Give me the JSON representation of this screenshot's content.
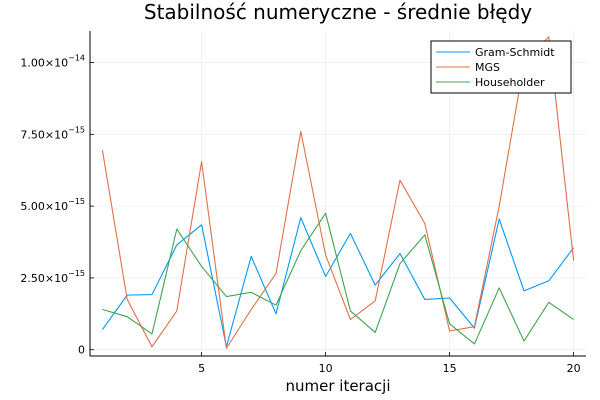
{
  "chart_data": {
    "type": "line",
    "title": "Stabilność numeryczne - średnie błędy",
    "xlabel": "numer iteracji",
    "ylabel": "",
    "xlim": [
      0.5,
      20.5
    ],
    "ylim": [
      -2.2e-16,
      1.11e-14
    ],
    "xticks": [
      5,
      10,
      15,
      20
    ],
    "yticks": [
      {
        "value": 0,
        "mantissa": "0",
        "exponent": ""
      },
      {
        "value": 2.5e-15,
        "mantissa": "2.50×10",
        "exponent": "−15"
      },
      {
        "value": 5e-15,
        "mantissa": "5.00×10",
        "exponent": "−15"
      },
      {
        "value": 7.5e-15,
        "mantissa": "7.50×10",
        "exponent": "−15"
      },
      {
        "value": 1e-14,
        "mantissa": "1.00×10",
        "exponent": "−14"
      }
    ],
    "grid": true,
    "legend_position": "top-right",
    "x": [
      1,
      2,
      3,
      4,
      5,
      6,
      7,
      8,
      9,
      10,
      11,
      12,
      13,
      14,
      15,
      16,
      17,
      18,
      19,
      20
    ],
    "series": [
      {
        "name": "Gram-Schmidt",
        "color": "#009AFA",
        "values": [
          7e-16,
          1.9e-15,
          1.92e-15,
          3.65e-15,
          4.35e-15,
          1e-16,
          3.25e-15,
          1.25e-15,
          4.6e-15,
          2.55e-15,
          4.05e-15,
          2.25e-15,
          3.35e-15,
          1.75e-15,
          1.8e-15,
          7.5e-16,
          4.55e-15,
          2.05e-15,
          2.4e-15,
          3.55e-15
        ]
      },
      {
        "name": "MGS",
        "color": "#E36F47",
        "values": [
          6.95e-15,
          1.75e-15,
          1e-16,
          1.35e-15,
          6.55e-15,
          5e-17,
          1.4e-15,
          2.65e-15,
          7.6e-15,
          3.3e-15,
          1.05e-15,
          1.7e-15,
          5.9e-15,
          4.4e-15,
          6.5e-16,
          8e-16,
          5e-15,
          1e-14,
          1.09e-14,
          3.1e-15
        ]
      },
      {
        "name": "Householder",
        "color": "#3EA44E",
        "values": [
          1.4e-15,
          1.15e-15,
          5.5e-16,
          4.2e-15,
          2.9e-15,
          1.85e-15,
          2e-15,
          1.55e-15,
          3.45e-15,
          4.75e-15,
          1.35e-15,
          6e-16,
          3e-15,
          4e-15,
          9e-16,
          2e-16,
          2.15e-15,
          3e-16,
          1.65e-15,
          1.05e-15
        ]
      }
    ]
  }
}
